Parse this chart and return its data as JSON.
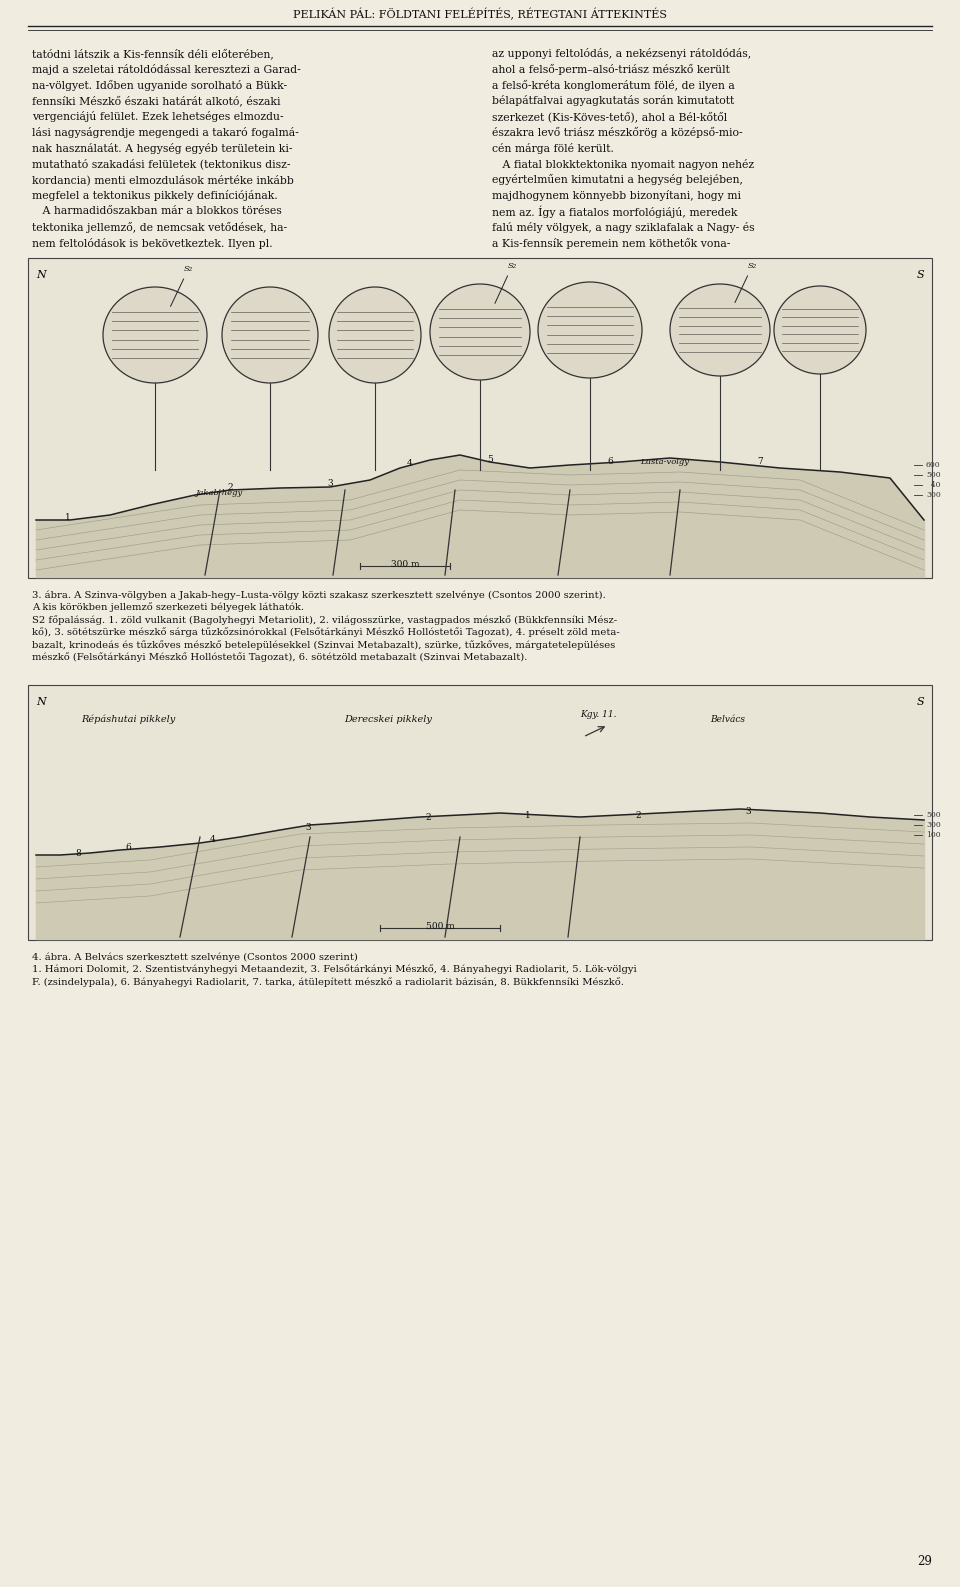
{
  "page_title": "PELIKÁN PÁL: FÖLDTANI FELÉPÍTÉS, RÉTEGTANI ÁTTEKINTÉS",
  "page_number": "29",
  "background_color": "#f0ece0",
  "text_color": "#111111",
  "body_text_left_col": [
    "tatódni látszik a Kis-fennsík déli előterében,",
    "majd a szeletai rátoldódással keresztezi a Garad-",
    "na-völgyet. Időben ugyanide sorolható a Bükk-",
    "fennsíki Mészkő északi határát alkotó, északi",
    "vergenciájú felület. Ezek lehetséges elmozdu-",
    "lási nagyságrendje megengedi a takaró fogalmá-",
    "nak használatát. A hegység egyéb területein ki-",
    "mutatható szakadási felületek (tektonikus disz-",
    "kordancia) menti elmozdulások mértéke inkább",
    "megfelel a tektonikus pikkely definíciójának.",
    "   A harmadidőszakban már a blokkos töréses",
    "tektonika jellemző, de nemcsak vetődések, ha-",
    "nem feltolódások is bekövetkeztek. Ilyen pl."
  ],
  "body_text_right_col": [
    "az upponyi feltolódás, a nekézsenyi rátoldódás,",
    "ahol a felső-perm–alsó-triász mészkő került",
    "a felső-kréta konglomerátum fölé, de ilyen a",
    "bélapátfalvai agyagkutatás során kimutatott",
    "szerkezet (Kis-Köves-tető), ahol a Bél-kőtől",
    "északra levő triász mészkőrög a középső-mio-",
    "cén márga fölé került.",
    "   A fiatal blokktektonika nyomait nagyon nehéz",
    "egyértelműen kimutatni a hegység belejében,",
    "majdhogynem könnyebb bizonyítani, hogy mi",
    "nem az. Így a fiatalos morfológiájú, meredek",
    "falú mély völgyek, a nagy sziklafalak a Nagy- és",
    "a Kis-fennsík peremein nem köthetők vona-"
  ],
  "fig3_caption_line1": "3. ábra. A Szinva-völgyben a Jakab-hegy–Lusta-völgy közti szakasz szerkesztett szelvénye (Csontos 2000 szerint).",
  "fig3_caption_line2": "A kis körökben jellemző szerkezeti bélyegek láthatók.",
  "fig3_caption_line3": "S2 főpalásság. 1. zöld vulkanit (Bagolyhegyi Metariolit), 2. világosszürke, vastagpados mészkő (Bükkfennsíki Mész-",
  "fig3_caption_line4": "kő), 3. sötétszürke mészkő sárga tűzkőzsinórokkal (Felsőtárkányi Mészkő Hollóstetői Tagozat), 4. préselt zöld meta-",
  "fig3_caption_line5": "bazalt, krinodeás és tűzkőves mészkő betelepülésekkel (Szinvai Metabazalt), szürke, tűzkőves, márgatetelepüléses",
  "fig3_caption_line6": "mészkő (Felsőtárkányi Mészkő Hollóstetői Tagozat), 6. sötétzöld metabazalt (Szinvai Metabazalt).",
  "fig4_caption_line1": "4. ábra. A Belvács szerkesztett szelvénye (Csontos 2000 szerint)",
  "fig4_caption_line2": "1. Hámori Dolomit, 2. Szentistványhegyi Metaandezit, 3. Felsőtárkányi Mészkő, 4. Bányahegyi Radiolarit, 5. Lök-völgyi",
  "fig4_caption_line3": "F. (zsindelypala), 6. Bányahegyi Radiolarit, 7. tarka, átülepített mészkő a radiolarit bázisán, 8. Bükkfennsíki Mészkő."
}
